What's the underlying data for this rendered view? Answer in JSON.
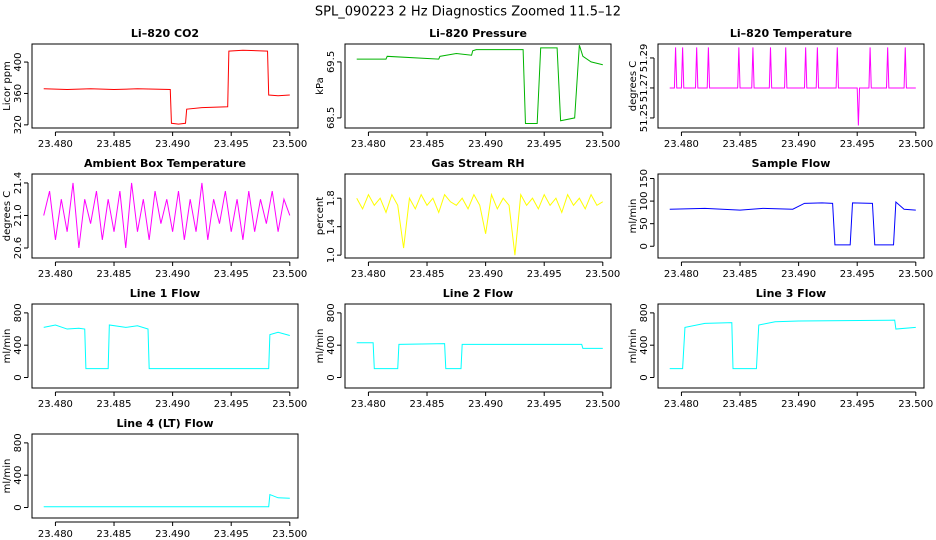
{
  "title": "SPL_090223  2 Hz Diagnostics Zoomed 11.5–12",
  "chart_data": [
    {
      "type": "line",
      "title": "Li–820 CO2",
      "ylabel": "Licor ppm",
      "color": "#ff0000",
      "x": [
        23.479,
        23.481,
        23.483,
        23.485,
        23.487,
        23.4898,
        23.4899,
        23.4905,
        23.4911,
        23.4912,
        23.4925,
        23.4947,
        23.4948,
        23.496,
        23.4981,
        23.4982,
        23.499,
        23.5
      ],
      "values": [
        366,
        365,
        366,
        365,
        366,
        365,
        322,
        321,
        322,
        340,
        342,
        343,
        414,
        415,
        414,
        358,
        357,
        358
      ],
      "xlim": [
        23.478,
        23.5007
      ],
      "xticks": [
        {
          "value": 23.48,
          "label": "23.480"
        },
        {
          "value": 23.485,
          "label": "23.485"
        },
        {
          "value": 23.49,
          "label": "23.490"
        },
        {
          "value": 23.495,
          "label": "23.495"
        },
        {
          "value": 23.5,
          "label": "23.500"
        }
      ],
      "ylim": [
        316,
        423
      ],
      "yticks": [
        320,
        360,
        400
      ]
    },
    {
      "type": "line",
      "title": "Li–820 Pressure",
      "ylabel": "kPa",
      "color": "#00b400",
      "x": [
        23.479,
        23.4815,
        23.4816,
        23.486,
        23.4861,
        23.4875,
        23.4888,
        23.4889,
        23.4892,
        23.4932,
        23.4934,
        23.4944,
        23.4947,
        23.4961,
        23.4964,
        23.4976,
        23.498,
        23.4983,
        23.499,
        23.5
      ],
      "values": [
        69.55,
        69.55,
        69.6,
        69.55,
        69.6,
        69.65,
        69.62,
        69.7,
        69.72,
        69.72,
        68.4,
        68.4,
        69.75,
        69.75,
        68.45,
        68.5,
        69.8,
        69.6,
        69.5,
        69.45
      ],
      "xlim": [
        23.478,
        23.5007
      ],
      "xticks": [
        {
          "value": 23.48,
          "label": "23.480"
        },
        {
          "value": 23.485,
          "label": "23.485"
        },
        {
          "value": 23.49,
          "label": "23.490"
        },
        {
          "value": 23.495,
          "label": "23.495"
        },
        {
          "value": 23.5,
          "label": "23.500"
        }
      ],
      "ylim": [
        68.32,
        69.82
      ],
      "yticks": [
        68.5,
        69.5
      ]
    },
    {
      "type": "line",
      "title": "Li–820 Temperature",
      "ylabel": "degrees C",
      "color": "#ff00ff",
      "x": [
        23.479,
        23.4794,
        23.4795,
        23.4796,
        23.48,
        23.4801,
        23.4802,
        23.4812,
        23.4813,
        23.4814,
        23.4822,
        23.4823,
        23.4824,
        23.4848,
        23.4849,
        23.485,
        23.486,
        23.4861,
        23.4862,
        23.4875,
        23.4876,
        23.4877,
        23.4888,
        23.4889,
        23.489,
        23.4905,
        23.4906,
        23.4907,
        23.4915,
        23.4916,
        23.4917,
        23.4932,
        23.4933,
        23.4934,
        23.495,
        23.4951,
        23.4952,
        23.496,
        23.4961,
        23.4962,
        23.4975,
        23.4976,
        23.4977,
        23.499,
        23.4991,
        23.4992,
        23.5
      ],
      "values": [
        51.27,
        51.27,
        51.297,
        51.27,
        51.27,
        51.297,
        51.27,
        51.27,
        51.297,
        51.27,
        51.27,
        51.297,
        51.27,
        51.27,
        51.297,
        51.27,
        51.27,
        51.297,
        51.27,
        51.27,
        51.297,
        51.27,
        51.27,
        51.297,
        51.27,
        51.27,
        51.297,
        51.27,
        51.27,
        51.297,
        51.27,
        51.27,
        51.297,
        51.27,
        51.27,
        51.245,
        51.27,
        51.27,
        51.297,
        51.27,
        51.27,
        51.297,
        51.27,
        51.27,
        51.297,
        51.27,
        51.27
      ],
      "xlim": [
        23.478,
        23.5007
      ],
      "xticks": [
        {
          "value": 23.48,
          "label": "23.480"
        },
        {
          "value": 23.485,
          "label": "23.485"
        },
        {
          "value": 23.49,
          "label": "23.490"
        },
        {
          "value": 23.495,
          "label": "23.495"
        },
        {
          "value": 23.5,
          "label": "23.500"
        }
      ],
      "ylim": [
        51.2433,
        51.2993
      ],
      "yticks": [
        51.25,
        51.27,
        51.29
      ]
    },
    {
      "type": "line",
      "title": "Ambient Box Temperature",
      "ylabel": "degrees C",
      "color": "#ff00ff",
      "x": [
        23.479,
        23.4795,
        23.48,
        23.4805,
        23.481,
        23.4815,
        23.482,
        23.4825,
        23.483,
        23.4835,
        23.484,
        23.4845,
        23.485,
        23.4855,
        23.486,
        23.4865,
        23.487,
        23.4875,
        23.488,
        23.4885,
        23.489,
        23.4895,
        23.49,
        23.4905,
        23.491,
        23.4915,
        23.492,
        23.4925,
        23.493,
        23.4935,
        23.494,
        23.4945,
        23.495,
        23.4955,
        23.496,
        23.4965,
        23.497,
        23.4975,
        23.498,
        23.4985,
        23.499,
        23.4995,
        23.5
      ],
      "values": [
        21.0,
        21.3,
        20.7,
        21.2,
        20.8,
        21.4,
        20.6,
        21.2,
        20.9,
        21.3,
        20.7,
        21.2,
        20.8,
        21.3,
        20.6,
        21.4,
        20.8,
        21.2,
        20.7,
        21.3,
        20.9,
        21.2,
        20.8,
        21.3,
        20.7,
        21.2,
        20.8,
        21.4,
        20.7,
        21.2,
        20.9,
        21.3,
        20.8,
        21.2,
        20.7,
        21.3,
        20.8,
        21.2,
        20.9,
        21.3,
        20.8,
        21.2,
        21.0
      ],
      "xlim": [
        23.478,
        23.5007
      ],
      "xticks": [
        {
          "value": 23.48,
          "label": "23.480"
        },
        {
          "value": 23.485,
          "label": "23.485"
        },
        {
          "value": 23.49,
          "label": "23.490"
        },
        {
          "value": 23.495,
          "label": "23.495"
        },
        {
          "value": 23.5,
          "label": "23.500"
        }
      ],
      "ylim": [
        20.477,
        21.51
      ],
      "yticks": [
        20.6,
        {
          "value": 21,
          "label": "21.0"
        },
        21.4
      ]
    },
    {
      "type": "line",
      "title": "Gas Stream RH",
      "ylabel": "percent",
      "color": "#ffff00",
      "x": [
        23.479,
        23.4795,
        23.48,
        23.4805,
        23.481,
        23.4815,
        23.482,
        23.4825,
        23.483,
        23.4835,
        23.484,
        23.4845,
        23.485,
        23.4855,
        23.486,
        23.4865,
        23.487,
        23.4875,
        23.488,
        23.4885,
        23.489,
        23.4895,
        23.49,
        23.4905,
        23.491,
        23.4915,
        23.492,
        23.4925,
        23.493,
        23.4935,
        23.494,
        23.4945,
        23.495,
        23.4955,
        23.496,
        23.4965,
        23.497,
        23.4975,
        23.498,
        23.4985,
        23.499,
        23.4995,
        23.5
      ],
      "values": [
        1.8,
        1.65,
        1.85,
        1.7,
        1.8,
        1.6,
        1.85,
        1.7,
        1.1,
        1.8,
        1.65,
        1.85,
        1.7,
        1.8,
        1.6,
        1.85,
        1.75,
        1.7,
        1.8,
        1.65,
        1.85,
        1.7,
        1.3,
        1.85,
        1.65,
        1.8,
        1.7,
        1.0,
        1.85,
        1.7,
        1.8,
        1.65,
        1.85,
        1.7,
        1.8,
        1.6,
        1.85,
        1.7,
        1.8,
        1.65,
        1.85,
        1.7,
        1.75
      ],
      "xlim": [
        23.478,
        23.5007
      ],
      "xticks": [
        {
          "value": 23.48,
          "label": "23.480"
        },
        {
          "value": 23.485,
          "label": "23.485"
        },
        {
          "value": 23.49,
          "label": "23.490"
        },
        {
          "value": 23.495,
          "label": "23.495"
        },
        {
          "value": 23.5,
          "label": "23.500"
        }
      ],
      "ylim": [
        0.96,
        2.14
      ],
      "yticks": [
        {
          "value": 1,
          "label": "1.0"
        },
        1.4,
        1.8
      ]
    },
    {
      "type": "line",
      "title": "Sample Flow",
      "ylabel": "ml/min",
      "color": "#0000ff",
      "x": [
        23.479,
        23.482,
        23.485,
        23.487,
        23.4895,
        23.4905,
        23.492,
        23.4929,
        23.4931,
        23.4944,
        23.4946,
        23.4963,
        23.4965,
        23.4981,
        23.4983,
        23.499,
        23.5
      ],
      "values": [
        82,
        84,
        80,
        84,
        82,
        95,
        96,
        95,
        3,
        3,
        96,
        95,
        3,
        3,
        98,
        82,
        80
      ],
      "xlim": [
        23.478,
        23.5007
      ],
      "xticks": [
        {
          "value": 23.48,
          "label": "23.480"
        },
        {
          "value": 23.485,
          "label": "23.485"
        },
        {
          "value": 23.49,
          "label": "23.490"
        },
        {
          "value": 23.495,
          "label": "23.495"
        },
        {
          "value": 23.5,
          "label": "23.500"
        }
      ],
      "ylim": [
        -26,
        160
      ],
      "yticks": [
        0,
        50,
        100,
        150
      ]
    },
    {
      "type": "line",
      "title": "Line 1 Flow",
      "ylabel": "ml/min",
      "color": "#00ffff",
      "x": [
        23.479,
        23.48,
        23.481,
        23.482,
        23.4825,
        23.4826,
        23.4845,
        23.4846,
        23.486,
        23.487,
        23.4879,
        23.488,
        23.4982,
        23.4983,
        23.499,
        23.5
      ],
      "values": [
        620,
        650,
        600,
        610,
        600,
        110,
        110,
        650,
        620,
        640,
        600,
        110,
        110,
        530,
        560,
        520
      ],
      "xlim": [
        23.478,
        23.5007
      ],
      "xticks": [
        {
          "value": 23.48,
          "label": "23.480"
        },
        {
          "value": 23.485,
          "label": "23.485"
        },
        {
          "value": 23.49,
          "label": "23.490"
        },
        {
          "value": 23.495,
          "label": "23.495"
        },
        {
          "value": 23.5,
          "label": "23.500"
        }
      ],
      "ylim": [
        -130,
        910
      ],
      "yticks": [
        0,
        400,
        800
      ]
    },
    {
      "type": "line",
      "title": "Line 2 Flow",
      "ylabel": "ml/min",
      "color": "#00ffff",
      "x": [
        23.479,
        23.4804,
        23.4805,
        23.4825,
        23.4826,
        23.4865,
        23.4866,
        23.4879,
        23.488,
        23.4982,
        23.4983,
        23.5
      ],
      "values": [
        430,
        430,
        110,
        110,
        410,
        420,
        110,
        110,
        410,
        410,
        360,
        360
      ],
      "xlim": [
        23.478,
        23.5007
      ],
      "xticks": [
        {
          "value": 23.48,
          "label": "23.480"
        },
        {
          "value": 23.485,
          "label": "23.485"
        },
        {
          "value": 23.49,
          "label": "23.490"
        },
        {
          "value": 23.495,
          "label": "23.495"
        },
        {
          "value": 23.5,
          "label": "23.500"
        }
      ],
      "ylim": [
        -130,
        910
      ],
      "yticks": [
        0,
        400,
        800
      ]
    },
    {
      "type": "line",
      "title": "Line 3 Flow",
      "ylabel": "ml/min",
      "color": "#00ffff",
      "x": [
        23.479,
        23.4801,
        23.4803,
        23.482,
        23.4843,
        23.4844,
        23.4864,
        23.4866,
        23.488,
        23.49,
        23.4982,
        23.4983,
        23.5
      ],
      "values": [
        110,
        110,
        620,
        670,
        680,
        110,
        110,
        650,
        690,
        700,
        710,
        600,
        620
      ],
      "xlim": [
        23.478,
        23.5007
      ],
      "xticks": [
        {
          "value": 23.48,
          "label": "23.480"
        },
        {
          "value": 23.485,
          "label": "23.485"
        },
        {
          "value": 23.49,
          "label": "23.490"
        },
        {
          "value": 23.495,
          "label": "23.495"
        },
        {
          "value": 23.5,
          "label": "23.500"
        }
      ],
      "ylim": [
        -130,
        910
      ],
      "yticks": [
        0,
        400,
        800
      ]
    },
    {
      "type": "line",
      "title": "Line 4 (LT) Flow",
      "ylabel": "ml/min",
      "color": "#00ffff",
      "x": [
        23.479,
        23.4982,
        23.4983,
        23.499,
        23.5
      ],
      "values": [
        10,
        10,
        160,
        120,
        115
      ],
      "xlim": [
        23.478,
        23.5007
      ],
      "xticks": [
        {
          "value": 23.48,
          "label": "23.480"
        },
        {
          "value": 23.485,
          "label": "23.485"
        },
        {
          "value": 23.49,
          "label": "23.490"
        },
        {
          "value": 23.495,
          "label": "23.495"
        },
        {
          "value": 23.5,
          "label": "23.500"
        }
      ],
      "ylim": [
        -130,
        910
      ],
      "yticks": [
        0,
        400,
        800
      ]
    }
  ]
}
